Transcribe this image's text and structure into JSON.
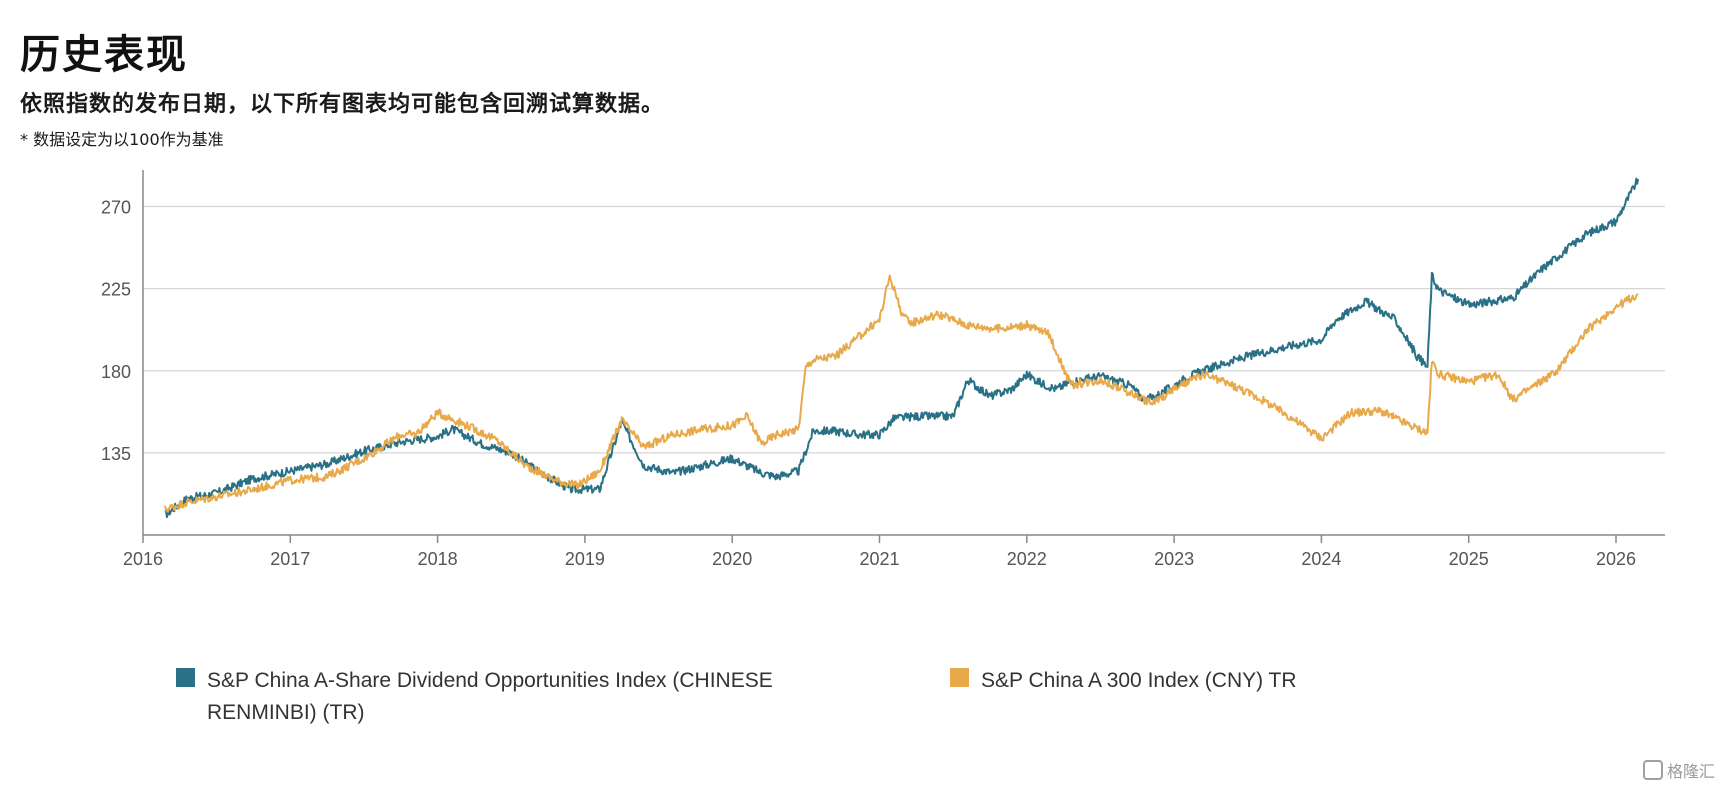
{
  "header": {
    "title": "历史表现",
    "subtitle": "依照指数的发布日期，以下所有图表均可能包含回溯试算数据。",
    "note": "* 数据设定为以100作为基准"
  },
  "watermark": {
    "text": "格隆汇"
  },
  "colors": {
    "teal": "#2a7187",
    "orange": "#e8a94a",
    "grid": "#d6d6d6",
    "axis": "#888888"
  },
  "chart_data": {
    "type": "line",
    "title": "",
    "xlabel": "",
    "ylabel": "",
    "xlim": [
      2016.0,
      2026.4
    ],
    "ylim": [
      90,
      290
    ],
    "x_ticks": [
      "2016",
      "2017",
      "2018",
      "2019",
      "2020",
      "2021",
      "2022",
      "2023",
      "2024",
      "2025",
      "2026"
    ],
    "y_ticks": [
      "135",
      "180",
      "225",
      "270"
    ],
    "grid": "horizontal",
    "legend_position": "bottom",
    "series": [
      {
        "name": "S&P China A-Share Dividend Opportunities Index (CHINESE RENMINBI) (TR)",
        "color": "#2a7187",
        "x": [
          2016.15,
          2016.3,
          2016.5,
          2016.75,
          2017.0,
          2017.25,
          2017.5,
          2017.75,
          2018.0,
          2018.1,
          2018.3,
          2018.5,
          2018.7,
          2018.9,
          2019.1,
          2019.25,
          2019.4,
          2019.6,
          2019.8,
          2020.0,
          2020.2,
          2020.3,
          2020.45,
          2020.55,
          2020.7,
          2020.85,
          2021.0,
          2021.1,
          2021.25,
          2021.5,
          2021.6,
          2021.75,
          2021.9,
          2022.0,
          2022.1,
          2022.2,
          2022.3,
          2022.5,
          2022.7,
          2022.8,
          2022.9,
          2023.1,
          2023.3,
          2023.5,
          2023.75,
          2024.0,
          2024.1,
          2024.3,
          2024.5,
          2024.65,
          2024.72,
          2024.75,
          2024.8,
          2025.0,
          2025.3,
          2025.5,
          2025.8,
          2026.0,
          2026.15
        ],
        "y": [
          101,
          110,
          113,
          121,
          125,
          129,
          136,
          141,
          144,
          148,
          140,
          135,
          124,
          115,
          115,
          152,
          128,
          124,
          128,
          132,
          124,
          122,
          125,
          147,
          147,
          145,
          145,
          154,
          155,
          155,
          175,
          166,
          170,
          178,
          173,
          170,
          174,
          177,
          172,
          164,
          167,
          177,
          183,
          188,
          193,
          197,
          208,
          218,
          208,
          188,
          182,
          232,
          224,
          216,
          220,
          236,
          255,
          262,
          285
        ]
      },
      {
        "name": "S&P China A 300 Index (CNY) TR",
        "color": "#e8a94a",
        "x": [
          2016.15,
          2016.3,
          2016.5,
          2016.75,
          2017.0,
          2017.25,
          2017.5,
          2017.75,
          2017.85,
          2018.0,
          2018.2,
          2018.4,
          2018.6,
          2018.8,
          2018.95,
          2019.1,
          2019.25,
          2019.4,
          2019.6,
          2019.8,
          2020.0,
          2020.1,
          2020.2,
          2020.3,
          2020.45,
          2020.5,
          2020.55,
          2020.7,
          2020.85,
          2021.0,
          2021.07,
          2021.15,
          2021.2,
          2021.4,
          2021.6,
          2021.8,
          2022.0,
          2022.15,
          2022.3,
          2022.5,
          2022.7,
          2022.85,
          2023.0,
          2023.2,
          2023.4,
          2023.6,
          2023.8,
          2024.0,
          2024.1,
          2024.2,
          2024.4,
          2024.6,
          2024.72,
          2024.75,
          2024.8,
          2025.0,
          2025.2,
          2025.3,
          2025.45,
          2025.6,
          2025.8,
          2026.0,
          2026.15
        ],
        "y": [
          104,
          108,
          111,
          115,
          120,
          122,
          132,
          145,
          145,
          157,
          150,
          142,
          128,
          120,
          117,
          125,
          153,
          138,
          145,
          148,
          150,
          155,
          140,
          145,
          148,
          182,
          186,
          188,
          198,
          208,
          232,
          212,
          206,
          211,
          205,
          203,
          205,
          200,
          172,
          175,
          168,
          162,
          170,
          178,
          172,
          164,
          154,
          143,
          150,
          157,
          158,
          150,
          146,
          185,
          178,
          174,
          178,
          164,
          172,
          180,
          202,
          215,
          222
        ]
      }
    ]
  }
}
